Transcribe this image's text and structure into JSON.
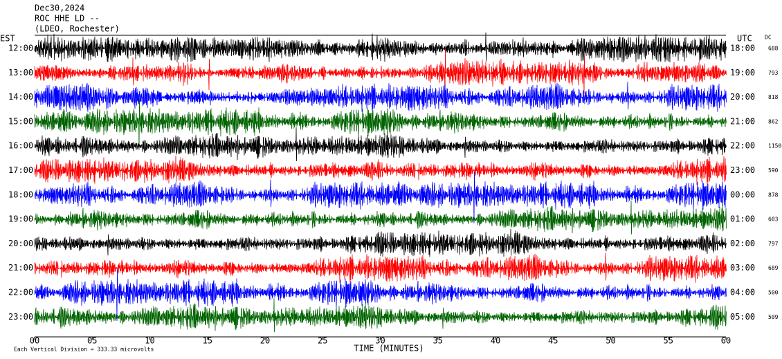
{
  "chart_data": {
    "type": "helicorder",
    "title_lines": [
      "Dec30,2024",
      "ROC HHE LD --",
      "(LDEO, Rochester)"
    ],
    "left_axis_label": "EST",
    "right_axis_label": "UTC",
    "dc_label": "DC",
    "x_label": "TIME (MINUTES)",
    "footer": "Each Vertical Division =  333.33 microvolts",
    "xlim": [
      0,
      60
    ],
    "xticks": [
      {
        "value": 0,
        "label": "00"
      },
      {
        "value": 5,
        "label": "05"
      },
      10,
      15,
      20,
      25,
      30,
      35,
      40,
      45,
      50,
      55,
      60
    ],
    "rows": {
      "est": [
        "12:00",
        "13:00",
        "14:00",
        "15:00",
        "16:00",
        "17:00",
        "18:00",
        "19:00",
        "20:00",
        "21:00",
        "22:00",
        "23:00"
      ],
      "utc": [
        "18:00",
        "19:00",
        "20:00",
        "21:00",
        "22:00",
        "23:00",
        "00:00",
        "01:00",
        "02:00",
        "03:00",
        "04:00",
        "05:00"
      ],
      "dc": [
        688,
        793,
        818,
        862,
        1150,
        590,
        878,
        603,
        797,
        689,
        500,
        509
      ]
    },
    "colors": [
      "#000000",
      "#ff0000",
      "#0000ff",
      "#006400"
    ]
  }
}
